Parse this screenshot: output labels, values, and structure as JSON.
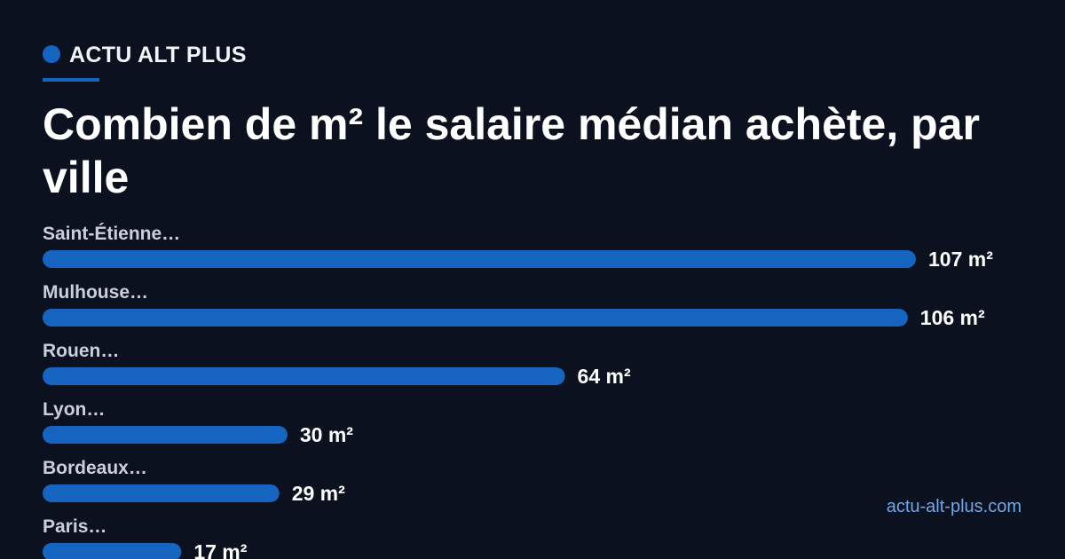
{
  "brand": "ACTU ALT PLUS",
  "site": "actu-alt-plus.com",
  "chart_data": {
    "type": "bar",
    "orientation": "horizontal",
    "title": "Combien de m² le salaire médian achète, par ville",
    "categories": [
      "Saint-Étienne…",
      "Mulhouse…",
      "Rouen…",
      "Lyon…",
      "Bordeaux…",
      "Paris…"
    ],
    "values": [
      107,
      106,
      64,
      30,
      29,
      17
    ],
    "value_labels": [
      "107 m²",
      "106 m²",
      "64 m²",
      "30 m²",
      "29 m²",
      "17 m²"
    ],
    "color": "#1565c0"
  }
}
